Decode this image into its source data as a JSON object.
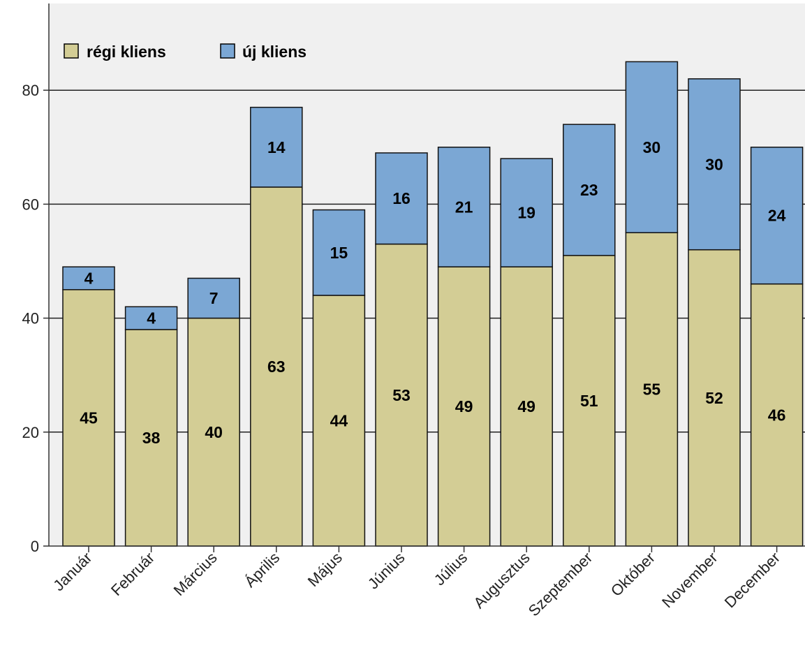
{
  "chart_data": {
    "type": "bar",
    "stacked": true,
    "categories": [
      "Január",
      "Február",
      "Március",
      "Április",
      "Május",
      "Június",
      "Július",
      "Augusztus",
      "Szeptember",
      "Október",
      "November",
      "December"
    ],
    "series": [
      {
        "name": "régi kliens",
        "color": "#d3cd95",
        "values": [
          45,
          38,
          40,
          63,
          44,
          53,
          49,
          49,
          51,
          55,
          52,
          46
        ]
      },
      {
        "name": "új kliens",
        "color": "#7ba7d4",
        "values": [
          4,
          4,
          7,
          14,
          15,
          16,
          21,
          19,
          23,
          30,
          30,
          24
        ]
      }
    ],
    "yticks": [
      "0",
      "20",
      "40",
      "60",
      "80"
    ],
    "ylim": [
      0,
      95
    ],
    "grid": true,
    "legend_position": "top-left",
    "plot_background": "#f0f0f0"
  }
}
